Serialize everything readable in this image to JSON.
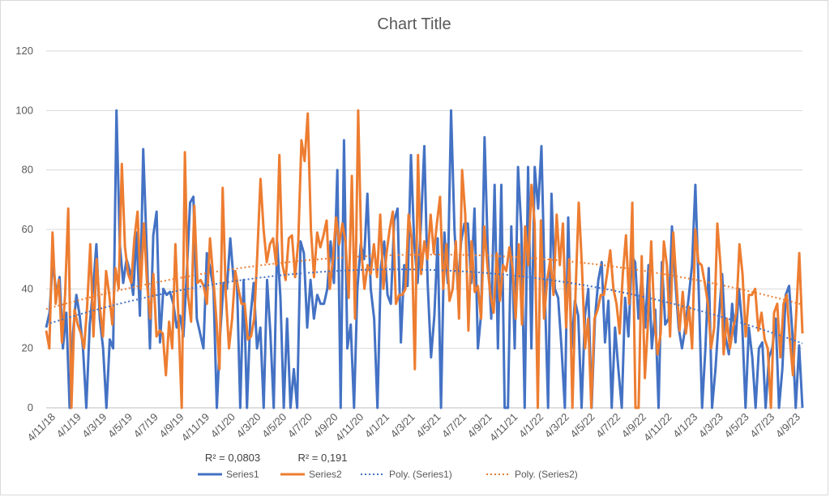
{
  "chart_data": {
    "type": "line",
    "title": "Chart Title",
    "ylim": [
      0,
      120
    ],
    "yticks": [
      "0",
      "20",
      "40",
      "60",
      "80",
      "100",
      "120"
    ],
    "grid": "horizontal",
    "legend_position": "bottom",
    "x_range": [
      "2018-04-11",
      "2023-11-11"
    ],
    "x_tick_labels": [
      "4/11/18",
      "4/1/19",
      "4/3/19",
      "4/5/19",
      "4/7/19",
      "4/9/19",
      "4/11/19",
      "4/1/20",
      "4/3/20",
      "4/5/20",
      "4/7/20",
      "4/9/20",
      "4/11/20",
      "4/1/21",
      "4/3/21",
      "4/5/21",
      "4/7/21",
      "4/9/21",
      "4/11/21",
      "4/1/22",
      "4/3/22",
      "4/5/22",
      "4/7/22",
      "4/9/22",
      "4/11/22",
      "4/1/23",
      "4/3/23",
      "4/5/23",
      "4/7/23",
      "4/9/23"
    ],
    "x_tick_dates": [
      "2018-04-11",
      "2019-04-01",
      "2019-04-03",
      "2019-04-05",
      "2019-04-07",
      "2019-04-09",
      "2019-04-11",
      "2020-04-01",
      "2020-04-03",
      "2020-04-05",
      "2020-04-07",
      "2020-04-09",
      "2020-04-11",
      "2021-04-01",
      "2021-04-03",
      "2021-04-05",
      "2021-04-07",
      "2021-04-09",
      "2021-04-11",
      "2022-04-01",
      "2022-04-03",
      "2022-04-05",
      "2022-04-07",
      "2022-04-09",
      "2022-04-11",
      "2023-04-01",
      "2023-04-03",
      "2023-04-05",
      "2023-04-07",
      "2023-04-09"
    ],
    "series": [
      {
        "name": "Series1",
        "color": "#4472C4",
        "values": [
          27,
          32,
          50,
          38,
          44,
          20,
          32,
          0,
          25,
          38,
          31,
          20,
          0,
          28,
          40,
          55,
          30,
          20,
          0,
          23,
          20,
          100,
          55,
          42,
          50,
          46,
          38,
          59,
          31,
          87,
          55,
          20,
          58,
          66,
          22,
          40,
          38,
          39,
          35,
          27,
          31,
          24,
          45,
          69,
          71,
          30,
          25,
          20,
          52,
          47,
          40,
          0,
          25,
          42,
          40,
          57,
          43,
          43,
          0,
          43,
          0,
          30,
          42,
          20,
          27,
          0,
          43,
          25,
          0,
          56,
          37,
          0,
          30,
          0,
          13,
          0,
          56,
          52,
          27,
          43,
          30,
          38,
          35,
          35,
          40,
          56,
          42,
          80,
          0,
          90,
          20,
          28,
          0,
          40,
          55,
          50,
          72,
          40,
          30,
          0,
          47,
          56,
          38,
          35,
          63,
          67,
          22,
          48,
          41,
          85,
          55,
          42,
          62,
          88,
          42,
          17,
          31,
          57,
          0,
          59,
          42,
          100,
          60,
          40,
          56,
          62,
          62,
          42,
          67,
          20,
          32,
          91,
          52,
          30,
          75,
          20,
          75,
          0,
          0,
          61,
          20,
          81,
          60,
          0,
          81,
          20,
          81,
          67,
          88,
          40,
          0,
          72,
          40,
          37,
          20,
          0,
          64,
          20,
          36,
          31,
          0,
          31,
          40,
          0,
          30,
          43,
          49,
          22,
          36,
          0,
          27,
          13,
          0,
          37,
          24,
          51,
          49,
          30,
          45,
          27,
          48,
          20,
          33,
          0,
          49,
          28,
          30,
          61,
          43,
          27,
          20,
          27,
          37,
          48,
          75,
          40,
          0,
          20,
          47,
          0,
          13,
          30,
          45,
          24,
          18,
          35,
          22,
          40,
          28,
          0,
          27,
          17,
          0,
          20,
          22,
          0,
          17,
          20,
          30,
          0,
          13,
          38,
          41,
          25,
          0,
          21,
          0
        ],
        "trend_r2": "R² = 0,0803",
        "trend_coeffs": [
          28.08,
          0.3536,
          -0.00169
        ]
      },
      {
        "name": "Series2",
        "color": "#ED7D31",
        "values": [
          26,
          20,
          59,
          35,
          43,
          22,
          38,
          67,
          0,
          33,
          28,
          25,
          20,
          34,
          55,
          24,
          50,
          34,
          24,
          46,
          38,
          28,
          47,
          40,
          82,
          54,
          45,
          42,
          57,
          66,
          40,
          62,
          42,
          30,
          45,
          24,
          26,
          25,
          11,
          29,
          20,
          55,
          29,
          0,
          86,
          38,
          29,
          68,
          42,
          43,
          41,
          35,
          57,
          44,
          30,
          13,
          74,
          38,
          20,
          30,
          46,
          40,
          35,
          35,
          23,
          24,
          30,
          52,
          77,
          60,
          49,
          55,
          57,
          48,
          85,
          48,
          43,
          57,
          58,
          44,
          56,
          90,
          83,
          99,
          60,
          44,
          59,
          54,
          58,
          63,
          40,
          50,
          64,
          55,
          62,
          56,
          37,
          78,
          30,
          100,
          53,
          40,
          48,
          45,
          55,
          44,
          65,
          40,
          52,
          60,
          66,
          35,
          38,
          38,
          40,
          65,
          57,
          13,
          85,
          45,
          56,
          50,
          65,
          52,
          62,
          71,
          40,
          55,
          36,
          40,
          56,
          30,
          80,
          65,
          26,
          56,
          39,
          41,
          30,
          61,
          48,
          38,
          32,
          52,
          36,
          48,
          46,
          54,
          47,
          30,
          55,
          28,
          61,
          48,
          75,
          62,
          0,
          63,
          30,
          43,
          50,
          38,
          65,
          48,
          62,
          27,
          50,
          0,
          39,
          69,
          48,
          20,
          30,
          0,
          30,
          33,
          38,
          38,
          45,
          53,
          40,
          35,
          25,
          45,
          58,
          35,
          69,
          0,
          0,
          51,
          10,
          29,
          56,
          30,
          18,
          25,
          56,
          48,
          24,
          59,
          42,
          26,
          39,
          25,
          34,
          20,
          60,
          49,
          48,
          42,
          35,
          20,
          27,
          62,
          48,
          18,
          30,
          20,
          27,
          32,
          55,
          45,
          24,
          38,
          38,
          40,
          26,
          32,
          23,
          20,
          0,
          32,
          35,
          17,
          35,
          38,
          23,
          11,
          31,
          52,
          25
        ],
        "trend_r2": "R² = 0,191",
        "trend_coeffs": [
          33.22,
          0.2991,
          -0.00122
        ]
      }
    ],
    "legend": [
      "Series1",
      "Series2",
      "Poly. (Series1)",
      "Poly. (Series2)"
    ]
  }
}
